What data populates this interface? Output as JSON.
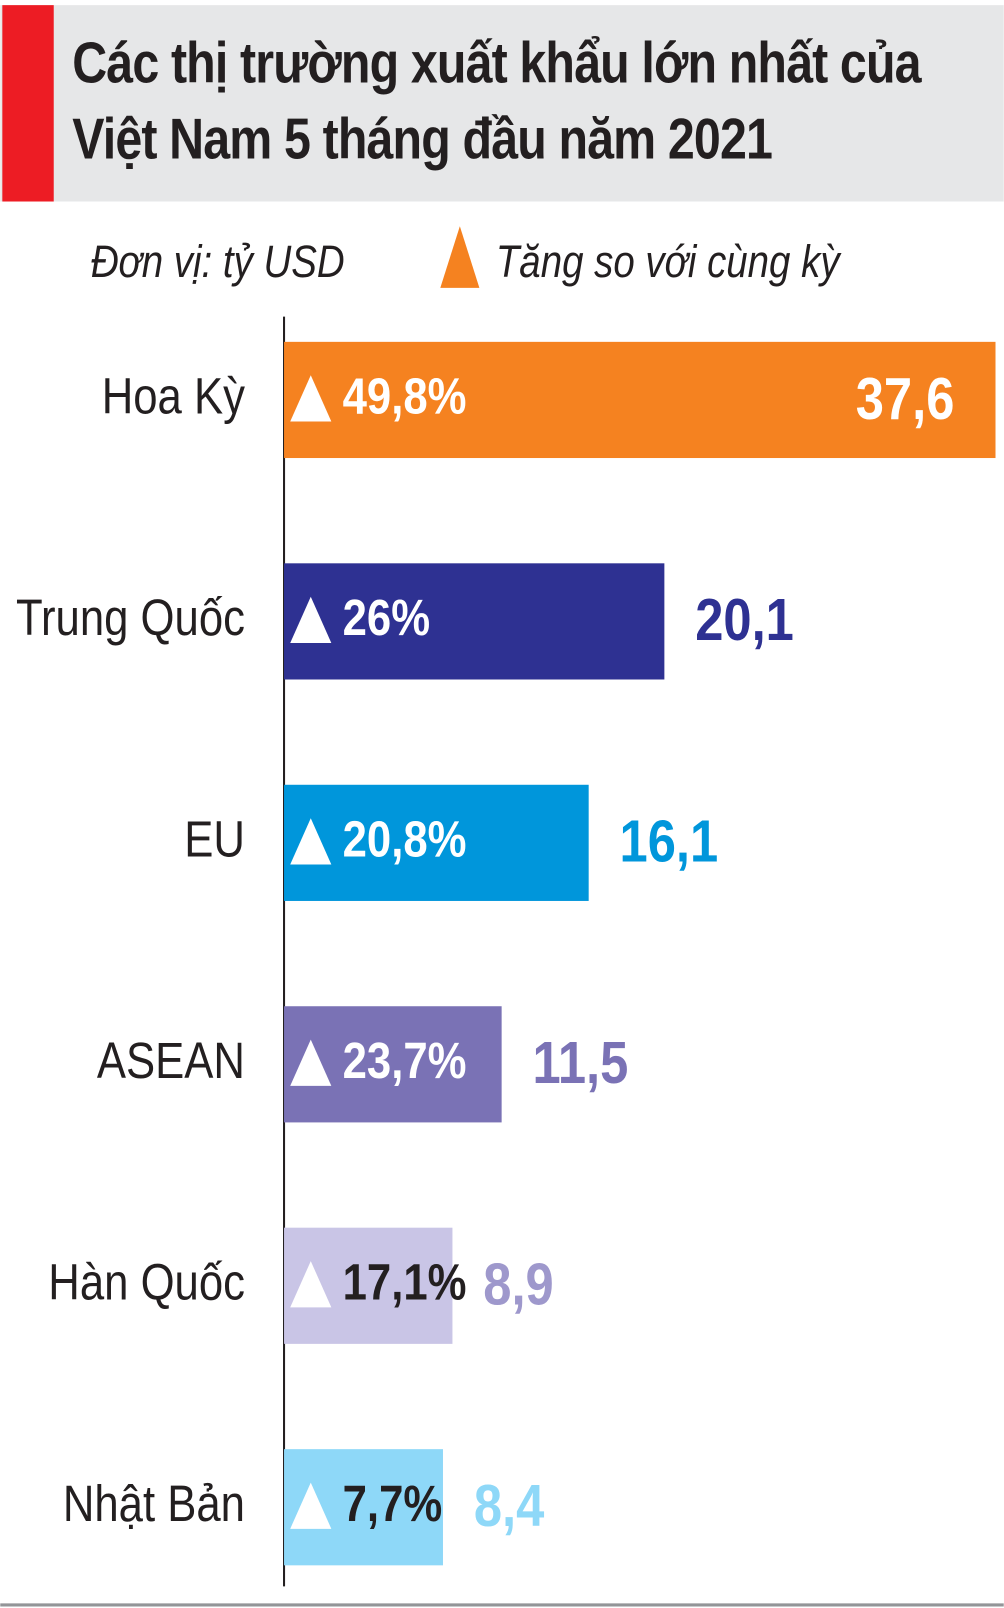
{
  "chart_data": {
    "type": "bar",
    "orientation": "horizontal",
    "title": "Các thị trường xuất khẩu lớn nhất của Việt Nam 5 tháng đầu năm 2021",
    "unit_note": "Đơn vị: tỷ USD",
    "legend_label": "Tăng so với cùng kỳ",
    "legend_color": "#f58220",
    "categories": [
      "Hoa Kỳ",
      "Trung Quốc",
      "EU",
      "ASEAN",
      "Hàn Quốc",
      "Nhật Bản"
    ],
    "values": [
      37.6,
      20.1,
      16.1,
      11.5,
      8.9,
      8.4
    ],
    "value_labels": [
      "37,6",
      "20,1",
      "16,1",
      "11,5",
      "8,9",
      "8,4"
    ],
    "colors": [
      "#f58220",
      "#2e3192",
      "#0096db",
      "#7a72b5",
      "#c9c5e6",
      "#8ed8f8"
    ],
    "value_label_colors": [
      "#ffffff",
      "#2e3192",
      "#0096db",
      "#7a72b5",
      "#9e98cc",
      "#8ed8f8"
    ],
    "growth": [
      49.8,
      26,
      20.8,
      23.7,
      17.1,
      7.7
    ],
    "growth_labels": [
      "49,8%",
      "26%",
      "20,8%",
      "23,7%",
      "17,1%",
      "7,7%"
    ],
    "growth_label_colors": [
      "#ffffff",
      "#ffffff",
      "#ffffff",
      "#ffffff",
      "#231f20",
      "#231f20"
    ]
  }
}
